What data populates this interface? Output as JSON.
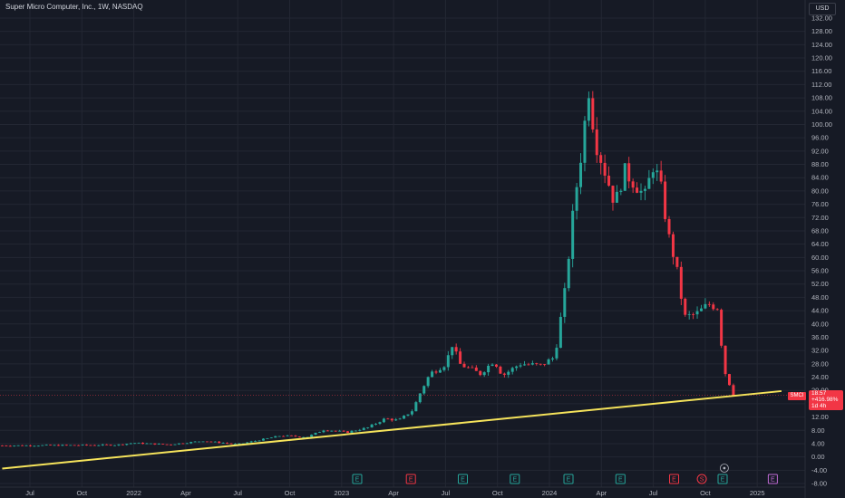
{
  "header": {
    "title": "Super Micro Computer, Inc., 1W, NASDAQ",
    "currency": "USD"
  },
  "price_tag": {
    "symbol": "SMCI",
    "price": "18.57",
    "change": "+416.98%",
    "countdown": "1d 4h"
  },
  "colors": {
    "background": "#161a25",
    "up": "#26a69a",
    "down": "#f23645",
    "trendline": "#f5e35b",
    "grid": "#232733",
    "axis_text": "#b2b5be"
  },
  "chart_data": {
    "type": "candlestick",
    "title": "Super Micro Computer, Inc., 1W, NASDAQ",
    "y_axis": {
      "currency": "USD",
      "ticks": [
        132,
        128,
        124,
        120,
        116,
        112,
        108,
        104,
        100,
        96,
        92,
        88,
        84,
        80,
        76,
        72,
        68,
        64,
        60,
        56,
        52,
        48,
        44,
        40,
        36,
        32,
        28,
        24,
        20,
        16,
        12,
        8,
        4,
        0,
        -4,
        -8
      ],
      "tick_labels": [
        "132.00",
        "128.00",
        "124.00",
        "120.00",
        "116.00",
        "112.00",
        "108.00",
        "104.00",
        "100.00",
        "96.00",
        "92.00",
        "88.00",
        "84.00",
        "80.00",
        "76.00",
        "72.00",
        "68.00",
        "64.00",
        "60.00",
        "56.00",
        "52.00",
        "48.00",
        "44.00",
        "40.00",
        "36.00",
        "32.00",
        "28.00",
        "24.00",
        "20.00",
        "16.00",
        "12.00",
        "8.00",
        "4.00",
        "0.00",
        "-4.00",
        "-8.00"
      ],
      "range": [
        -8,
        132
      ]
    },
    "x_axis": {
      "labels": [
        {
          "t": 0.0,
          "label": "Jul"
        },
        {
          "t": 3.0,
          "label": "Oct"
        },
        {
          "t": 6.0,
          "label": "2022"
        },
        {
          "t": 9.0,
          "label": "Apr"
        },
        {
          "t": 12.0,
          "label": "Jul"
        },
        {
          "t": 15.0,
          "label": "Oct"
        },
        {
          "t": 18.0,
          "label": "2023"
        },
        {
          "t": 21.0,
          "label": "Apr"
        },
        {
          "t": 24.0,
          "label": "Jul"
        },
        {
          "t": 27.0,
          "label": "Oct"
        },
        {
          "t": 30.0,
          "label": "2024"
        },
        {
          "t": 33.0,
          "label": "Apr"
        },
        {
          "t": 36.0,
          "label": "Jul"
        },
        {
          "t": 39.0,
          "label": "Oct"
        },
        {
          "t": 42.0,
          "label": "2025"
        }
      ]
    },
    "last_price": 18.57,
    "current_price_line": 18.57,
    "trendline": {
      "from": [
        -1.6,
        -3.5
      ],
      "to": [
        43.4,
        19.8
      ]
    },
    "events": [
      {
        "t": 18.9,
        "label": "E",
        "kind": "earnings"
      },
      {
        "t": 22.0,
        "label": "E",
        "kind": "earnings-down"
      },
      {
        "t": 25.0,
        "label": "E",
        "kind": "earnings"
      },
      {
        "t": 28.0,
        "label": "E",
        "kind": "earnings"
      },
      {
        "t": 31.1,
        "label": "E",
        "kind": "earnings"
      },
      {
        "t": 34.1,
        "label": "E",
        "kind": "earnings"
      },
      {
        "t": 37.2,
        "label": "E",
        "kind": "earnings-down"
      },
      {
        "t": 38.8,
        "label": "S",
        "kind": "split"
      },
      {
        "t": 40.0,
        "label": "E",
        "kind": "earnings"
      },
      {
        "t": 42.9,
        "label": "E",
        "kind": "upcoming"
      }
    ],
    "keyframes": [
      {
        "t": -1.6,
        "p": 3.4
      },
      {
        "t": 5.0,
        "p": 3.6
      },
      {
        "t": 6.0,
        "p": 4.2
      },
      {
        "t": 8.0,
        "p": 3.7
      },
      {
        "t": 10.0,
        "p": 4.8
      },
      {
        "t": 12.0,
        "p": 3.8
      },
      {
        "t": 13.0,
        "p": 4.8
      },
      {
        "t": 14.5,
        "p": 6.4
      },
      {
        "t": 16.0,
        "p": 6.0
      },
      {
        "t": 17.0,
        "p": 8.2
      },
      {
        "t": 18.3,
        "p": 7.4
      },
      {
        "t": 19.5,
        "p": 8.8
      },
      {
        "t": 20.5,
        "p": 11.5
      },
      {
        "t": 21.3,
        "p": 11.0
      },
      {
        "t": 22.1,
        "p": 14.0
      },
      {
        "t": 22.6,
        "p": 20.0
      },
      {
        "t": 23.1,
        "p": 25.0
      },
      {
        "t": 24.0,
        "p": 28.0
      },
      {
        "t": 24.4,
        "p": 34.0
      },
      {
        "t": 24.8,
        "p": 28.0
      },
      {
        "t": 26.0,
        "p": 25.0
      },
      {
        "t": 26.8,
        "p": 29.0
      },
      {
        "t": 27.3,
        "p": 24.5
      },
      {
        "t": 28.3,
        "p": 28.0
      },
      {
        "t": 29.5,
        "p": 27.5
      },
      {
        "t": 30.3,
        "p": 30.0
      },
      {
        "t": 30.9,
        "p": 50.0
      },
      {
        "t": 31.4,
        "p": 75.0
      },
      {
        "t": 31.8,
        "p": 90.0
      },
      {
        "t": 32.3,
        "p": 112.0
      },
      {
        "t": 32.6,
        "p": 96.0
      },
      {
        "t": 33.2,
        "p": 86.0
      },
      {
        "t": 33.8,
        "p": 76.0
      },
      {
        "t": 34.3,
        "p": 86.0
      },
      {
        "t": 35.0,
        "p": 82.0
      },
      {
        "t": 35.5,
        "p": 78.0
      },
      {
        "t": 36.0,
        "p": 88.0
      },
      {
        "t": 36.4,
        "p": 82.0
      },
      {
        "t": 36.9,
        "p": 66.0
      },
      {
        "t": 37.3,
        "p": 58.0
      },
      {
        "t": 37.8,
        "p": 42.0
      },
      {
        "t": 38.5,
        "p": 43.0
      },
      {
        "t": 39.2,
        "p": 46.0
      },
      {
        "t": 39.7,
        "p": 45.0
      },
      {
        "t": 40.1,
        "p": 26.0
      },
      {
        "t": 40.5,
        "p": 20.6
      },
      {
        "t": 40.75,
        "p": 18.57
      }
    ]
  }
}
